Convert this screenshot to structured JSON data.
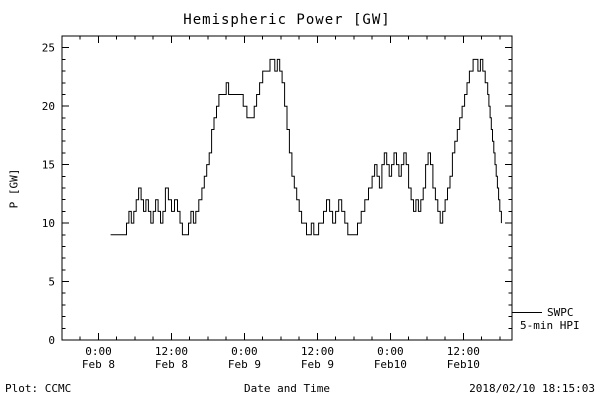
{
  "chart_data": {
    "type": "line",
    "style": "step",
    "title": "Hemispheric Power [GW]",
    "xlabel": "Date and Time",
    "ylabel": "P [GW]",
    "ylim": [
      0,
      26
    ],
    "xlim_hours": [
      -6,
      68
    ],
    "grid": false,
    "legend_position": "right-outside-bottom",
    "y_ticks": [
      0,
      5,
      10,
      15,
      20,
      25
    ],
    "x_ticks": [
      {
        "t": 0,
        "time": "0:00",
        "date": "Feb 8"
      },
      {
        "t": 12,
        "time": "12:00",
        "date": "Feb 8"
      },
      {
        "t": 24,
        "time": "0:00",
        "date": "Feb 9"
      },
      {
        "t": 36,
        "time": "12:00",
        "date": "Feb 9"
      },
      {
        "t": 48,
        "time": "0:00",
        "date": "Feb10"
      },
      {
        "t": 60,
        "time": "12:00",
        "date": "Feb10"
      }
    ],
    "series": [
      {
        "name": "SWPC 5-min HPI",
        "points": [
          [
            2,
            9
          ],
          [
            4.6,
            10
          ],
          [
            5,
            11
          ],
          [
            5.4,
            10
          ],
          [
            5.8,
            11
          ],
          [
            6.2,
            12
          ],
          [
            6.6,
            13
          ],
          [
            7,
            12
          ],
          [
            7.4,
            11
          ],
          [
            7.8,
            12
          ],
          [
            8.2,
            11
          ],
          [
            8.6,
            10
          ],
          [
            9,
            11
          ],
          [
            9.4,
            12
          ],
          [
            9.8,
            11
          ],
          [
            10.2,
            10
          ],
          [
            10.6,
            11
          ],
          [
            11,
            13
          ],
          [
            11.5,
            12
          ],
          [
            12,
            11
          ],
          [
            12.5,
            12
          ],
          [
            13,
            11
          ],
          [
            13.4,
            10
          ],
          [
            13.8,
            9
          ],
          [
            14.8,
            10
          ],
          [
            15.2,
            11
          ],
          [
            15.6,
            10
          ],
          [
            16,
            11
          ],
          [
            16.5,
            12
          ],
          [
            17,
            13
          ],
          [
            17.4,
            14
          ],
          [
            17.8,
            15
          ],
          [
            18.2,
            16
          ],
          [
            18.6,
            18
          ],
          [
            19,
            19
          ],
          [
            19.4,
            20
          ],
          [
            19.8,
            21
          ],
          [
            21,
            22
          ],
          [
            21.4,
            21
          ],
          [
            23.8,
            20
          ],
          [
            24.4,
            19
          ],
          [
            25.6,
            20
          ],
          [
            26,
            21
          ],
          [
            26.5,
            22
          ],
          [
            27,
            23
          ],
          [
            28.2,
            24
          ],
          [
            29,
            23
          ],
          [
            29.4,
            24
          ],
          [
            29.8,
            23
          ],
          [
            30.2,
            22
          ],
          [
            30.6,
            20
          ],
          [
            31,
            18
          ],
          [
            31.4,
            16
          ],
          [
            31.8,
            14
          ],
          [
            32.2,
            13
          ],
          [
            32.6,
            12
          ],
          [
            33,
            11
          ],
          [
            33.4,
            10
          ],
          [
            34.2,
            9
          ],
          [
            35,
            10
          ],
          [
            35.4,
            9
          ],
          [
            36.2,
            10
          ],
          [
            37,
            11
          ],
          [
            37.5,
            12
          ],
          [
            38,
            11
          ],
          [
            38.5,
            10
          ],
          [
            39,
            11
          ],
          [
            39.5,
            12
          ],
          [
            40,
            11
          ],
          [
            40.5,
            10
          ],
          [
            41,
            9
          ],
          [
            42.6,
            10
          ],
          [
            43.2,
            11
          ],
          [
            43.8,
            12
          ],
          [
            44.4,
            13
          ],
          [
            45,
            14
          ],
          [
            45.4,
            15
          ],
          [
            45.8,
            14
          ],
          [
            46.2,
            13
          ],
          [
            46.6,
            15
          ],
          [
            47,
            16
          ],
          [
            47.4,
            15
          ],
          [
            47.8,
            14
          ],
          [
            48.2,
            15
          ],
          [
            48.6,
            16
          ],
          [
            49,
            15
          ],
          [
            49.4,
            14
          ],
          [
            49.8,
            15
          ],
          [
            50.2,
            16
          ],
          [
            50.6,
            15
          ],
          [
            51,
            13
          ],
          [
            51.4,
            12
          ],
          [
            51.8,
            11
          ],
          [
            52.2,
            12
          ],
          [
            52.6,
            11
          ],
          [
            53,
            12
          ],
          [
            53.4,
            13
          ],
          [
            53.8,
            15
          ],
          [
            54.2,
            16
          ],
          [
            54.6,
            15
          ],
          [
            55,
            13
          ],
          [
            55.4,
            12
          ],
          [
            55.8,
            11
          ],
          [
            56.2,
            10
          ],
          [
            56.6,
            11
          ],
          [
            57,
            12
          ],
          [
            57.4,
            13
          ],
          [
            57.8,
            14
          ],
          [
            58.2,
            16
          ],
          [
            58.6,
            17
          ],
          [
            59,
            18
          ],
          [
            59.4,
            19
          ],
          [
            59.8,
            20
          ],
          [
            60.2,
            21
          ],
          [
            60.6,
            22
          ],
          [
            61,
            23
          ],
          [
            61.6,
            24
          ],
          [
            62.4,
            23
          ],
          [
            62.8,
            24
          ],
          [
            63.2,
            23
          ],
          [
            63.6,
            22
          ],
          [
            64,
            21
          ],
          [
            64.2,
            20
          ],
          [
            64.4,
            19
          ],
          [
            64.6,
            18
          ],
          [
            64.8,
            17
          ],
          [
            65,
            16
          ],
          [
            65.2,
            15
          ],
          [
            65.4,
            14
          ],
          [
            65.6,
            13
          ],
          [
            65.8,
            12
          ],
          [
            66,
            11
          ],
          [
            66.25,
            10
          ]
        ]
      }
    ],
    "line_color": "#000000"
  },
  "legend": {
    "line1": "SWPC",
    "line2": "5-min HPI"
  },
  "footer": {
    "left": "Plot: CCMC",
    "right": "2018/02/10 18:15:03"
  }
}
